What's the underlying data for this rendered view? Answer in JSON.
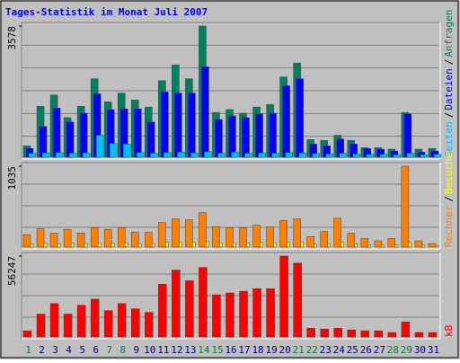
{
  "chart_data": {
    "type": "bar",
    "title": "Tages-Statistik im Monat Juli 2007",
    "separator": "/",
    "categories": [
      "1",
      "2",
      "3",
      "4",
      "5",
      "6",
      "7",
      "8",
      "9",
      "10",
      "11",
      "12",
      "13",
      "14",
      "15",
      "16",
      "17",
      "18",
      "19",
      "20",
      "21",
      "22",
      "23",
      "24",
      "25",
      "26",
      "27",
      "28",
      "29",
      "30",
      "31"
    ],
    "category_colors": [
      "#008040",
      "#000080",
      "#000080",
      "#000080",
      "#000080",
      "#000080",
      "#008040",
      "#008040",
      "#000080",
      "#000080",
      "#000080",
      "#000080",
      "#000080",
      "#008040",
      "#008040",
      "#000080",
      "#000080",
      "#000080",
      "#000080",
      "#000080",
      "#008040",
      "#008040",
      "#000080",
      "#000080",
      "#000080",
      "#000080",
      "#000080",
      "#008040",
      "#008040",
      "#000080",
      "#000080"
    ],
    "panels": [
      {
        "ylim": [
          0,
          3578
        ],
        "yticks": [
          3578
        ],
        "series": [
          {
            "name": "Anfragen",
            "color": "#008060",
            "values": [
              310,
              1390,
              1700,
              1080,
              1390,
              2140,
              1510,
              1750,
              1560,
              1370,
              2090,
              2520,
              2140,
              3578,
              1220,
              1300,
              1200,
              1370,
              1440,
              2190,
              2570,
              480,
              460,
              600,
              460,
              260,
              260,
              220,
              1220,
              220,
              240
            ]
          },
          {
            "name": "Dateien",
            "color": "#0000ff",
            "values": [
              240,
              840,
              1340,
              960,
              1200,
              1730,
              1300,
              1320,
              1320,
              960,
              1780,
              1750,
              1750,
              2470,
              1030,
              1130,
              1080,
              1180,
              1200,
              1950,
              2140,
              360,
              310,
              500,
              360,
              240,
              220,
              170,
              1180,
              140,
              170
            ]
          },
          {
            "name": "Seiten",
            "color": "#00c0ff",
            "values": [
              110,
              120,
              130,
              110,
              120,
              600,
              380,
              360,
              130,
              110,
              130,
              140,
              120,
              150,
              110,
              140,
              110,
              120,
              110,
              130,
              120,
              100,
              90,
              110,
              90,
              80,
              80,
              70,
              110,
              70,
              80
            ]
          }
        ]
      },
      {
        "ylim": [
          0,
          1035
        ],
        "yticks": [
          1035
        ],
        "series": [
          {
            "name": "Besuche",
            "color": "#ffff00",
            "values": [
              40,
              50,
              45,
              50,
              45,
              55,
              50,
              55,
              45,
              45,
              60,
              65,
              60,
              70,
              55,
              55,
              55,
              60,
              55,
              65,
              65,
              35,
              45,
              60,
              40,
              30,
              25,
              30,
              60,
              25,
              20
            ]
          },
          {
            "name": "Rechner",
            "color": "#ff8000",
            "values": [
              160,
              235,
              180,
              225,
              180,
              250,
              225,
              250,
              190,
              190,
              315,
              360,
              350,
              440,
              260,
              250,
              250,
              280,
              260,
              340,
              360,
              135,
              200,
              370,
              180,
              110,
              80,
              110,
              1035,
              80,
              45
            ]
          }
        ]
      },
      {
        "ylim": [
          0,
          56247
        ],
        "yticks": [
          56247
        ],
        "series": [
          {
            "name": "kB",
            "color": "#ff0000",
            "values": [
              4300,
              15900,
              23200,
              15900,
              22000,
              26300,
              18300,
              23200,
              19600,
              17100,
              36700,
              46500,
              39100,
              48300,
              29300,
              30600,
              31800,
              33600,
              33600,
              56247,
              51400,
              6100,
              5500,
              6100,
              4900,
              4300,
              4300,
              3100,
              10400,
              3100,
              3100
            ]
          }
        ]
      }
    ]
  }
}
